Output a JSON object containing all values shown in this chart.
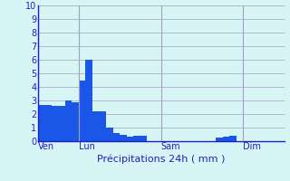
{
  "title": "Précipitations 24h ( mm )",
  "bar_color": "#1a56e8",
  "background_color": "#d8f5f5",
  "grid_color": "#a0a0c0",
  "axis_color": "#2020c0",
  "text_color": "#2020c0",
  "ylim": [
    0,
    10
  ],
  "yticks": [
    0,
    1,
    2,
    3,
    4,
    5,
    6,
    7,
    8,
    9,
    10
  ],
  "bar_values": [
    2.7,
    2.7,
    2.6,
    2.6,
    3.0,
    2.9,
    4.5,
    6.0,
    2.2,
    2.2,
    1.0,
    0.6,
    0.5,
    0.35,
    0.4,
    0.4,
    0.0,
    0.0,
    0.0,
    0.0,
    0.0,
    0.0,
    0.0,
    0.0,
    0.0,
    0.0,
    0.3,
    0.35,
    0.4,
    0.0,
    0.0,
    0.0,
    0.0,
    0.0,
    0.0,
    0.0
  ],
  "num_bars": 36,
  "day_labels": [
    "Ven",
    "Lun",
    "Sam",
    "Dim"
  ],
  "day_positions": [
    0,
    6,
    18,
    30
  ],
  "vline_positions": [
    6,
    18,
    30
  ]
}
